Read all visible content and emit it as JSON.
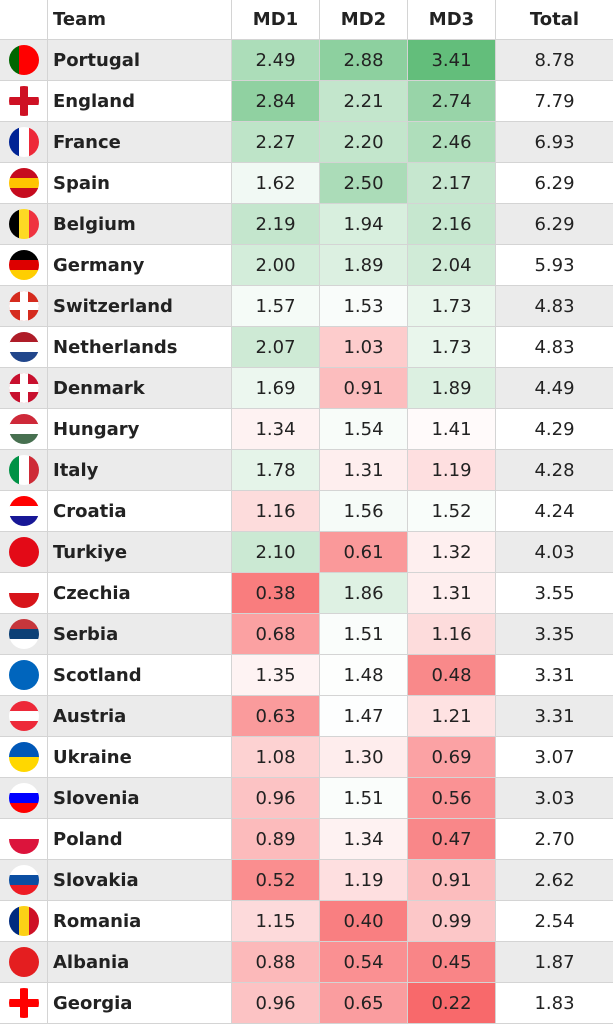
{
  "table": {
    "header": [
      "Team",
      "MD1",
      "MD2",
      "MD3",
      "Total"
    ],
    "rows": [
      [
        "Portugal",
        "2.49",
        "2.88",
        "3.41",
        "8.78"
      ],
      [
        "England",
        "2.84",
        "2.21",
        "2.74",
        "7.79"
      ],
      [
        "France",
        "2.27",
        "2.20",
        "2.46",
        "6.93"
      ],
      [
        "Spain",
        "1.62",
        "2.50",
        "2.17",
        "6.29"
      ],
      [
        "Belgium",
        "2.19",
        "1.94",
        "2.16",
        "6.29"
      ],
      [
        "Germany",
        "2.00",
        "1.89",
        "2.04",
        "5.93"
      ],
      [
        "Switzerland",
        "1.57",
        "1.53",
        "1.73",
        "4.83"
      ],
      [
        "Netherlands",
        "2.07",
        "1.03",
        "1.73",
        "4.83"
      ],
      [
        "Denmark",
        "1.69",
        "0.91",
        "1.89",
        "4.49"
      ],
      [
        "Hungary",
        "1.34",
        "1.54",
        "1.41",
        "4.29"
      ],
      [
        "Italy",
        "1.78",
        "1.31",
        "1.19",
        "4.28"
      ],
      [
        "Croatia",
        "1.16",
        "1.56",
        "1.52",
        "4.24"
      ],
      [
        "Turkiye",
        "2.10",
        "0.61",
        "1.32",
        "4.03"
      ],
      [
        "Czechia",
        "0.38",
        "1.86",
        "1.31",
        "3.55"
      ],
      [
        "Serbia",
        "0.68",
        "1.51",
        "1.16",
        "3.35"
      ],
      [
        "Scotland",
        "1.35",
        "1.48",
        "0.48",
        "3.31"
      ],
      [
        "Austria",
        "0.63",
        "1.47",
        "1.21",
        "3.31"
      ],
      [
        "Ukraine",
        "1.08",
        "1.30",
        "0.69",
        "3.07"
      ],
      [
        "Slovenia",
        "0.96",
        "1.51",
        "0.56",
        "3.03"
      ],
      [
        "Poland",
        "0.89",
        "1.34",
        "0.47",
        "2.70"
      ],
      [
        "Slovakia",
        "0.52",
        "1.19",
        "0.91",
        "2.62"
      ],
      [
        "Romania",
        "1.15",
        "0.40",
        "0.99",
        "2.54"
      ],
      [
        "Albania",
        "0.88",
        "0.54",
        "0.45",
        "1.87"
      ],
      [
        "Georgia",
        "0.96",
        "0.65",
        "0.22",
        "1.83"
      ]
    ]
  }
}
